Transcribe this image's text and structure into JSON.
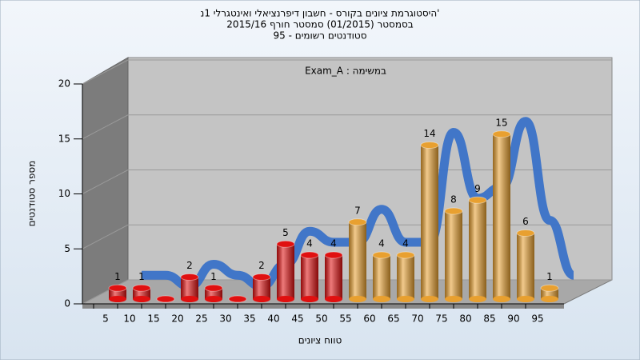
{
  "chart_data": {
    "type": "bar",
    "title": [
      "היסטוגרמת ציונים בקורס - חשבון דיפרנציאלי ואינטגרלי 1נ'",
      "בסמסטר  (01/2015)  סמסטר חורף 2015/16",
      "סטודנטים רשומים - 95"
    ],
    "annotation": "Exam_A : במשימה",
    "x_label": "טווח ציונים",
    "y_label": "מספר סטודנטים",
    "categories": [
      "5",
      "10",
      "15",
      "20",
      "25",
      "30",
      "35",
      "40",
      "45",
      "50",
      "55",
      "60",
      "65",
      "70",
      "75",
      "80",
      "85",
      "90",
      "95"
    ],
    "values": [
      1,
      1,
      0,
      2,
      1,
      0,
      2,
      5,
      4,
      4,
      7,
      4,
      4,
      14,
      8,
      9,
      15,
      6,
      1
    ],
    "colors": [
      "#e01010",
      "#e01010",
      "#e01010",
      "#e01010",
      "#e01010",
      "#e01010",
      "#e01010",
      "#e01010",
      "#e01010",
      "#e01010",
      "#e8a030",
      "#e8a030",
      "#e8a030",
      "#e8a030",
      "#e8a030",
      "#e8a030",
      "#e8a030",
      "#e8a030",
      "#e8a030"
    ],
    "trend_color": "#3a72c8",
    "ylim": [
      0,
      20
    ],
    "yticks": [
      0,
      5,
      10,
      15,
      20
    ],
    "grid": true
  }
}
